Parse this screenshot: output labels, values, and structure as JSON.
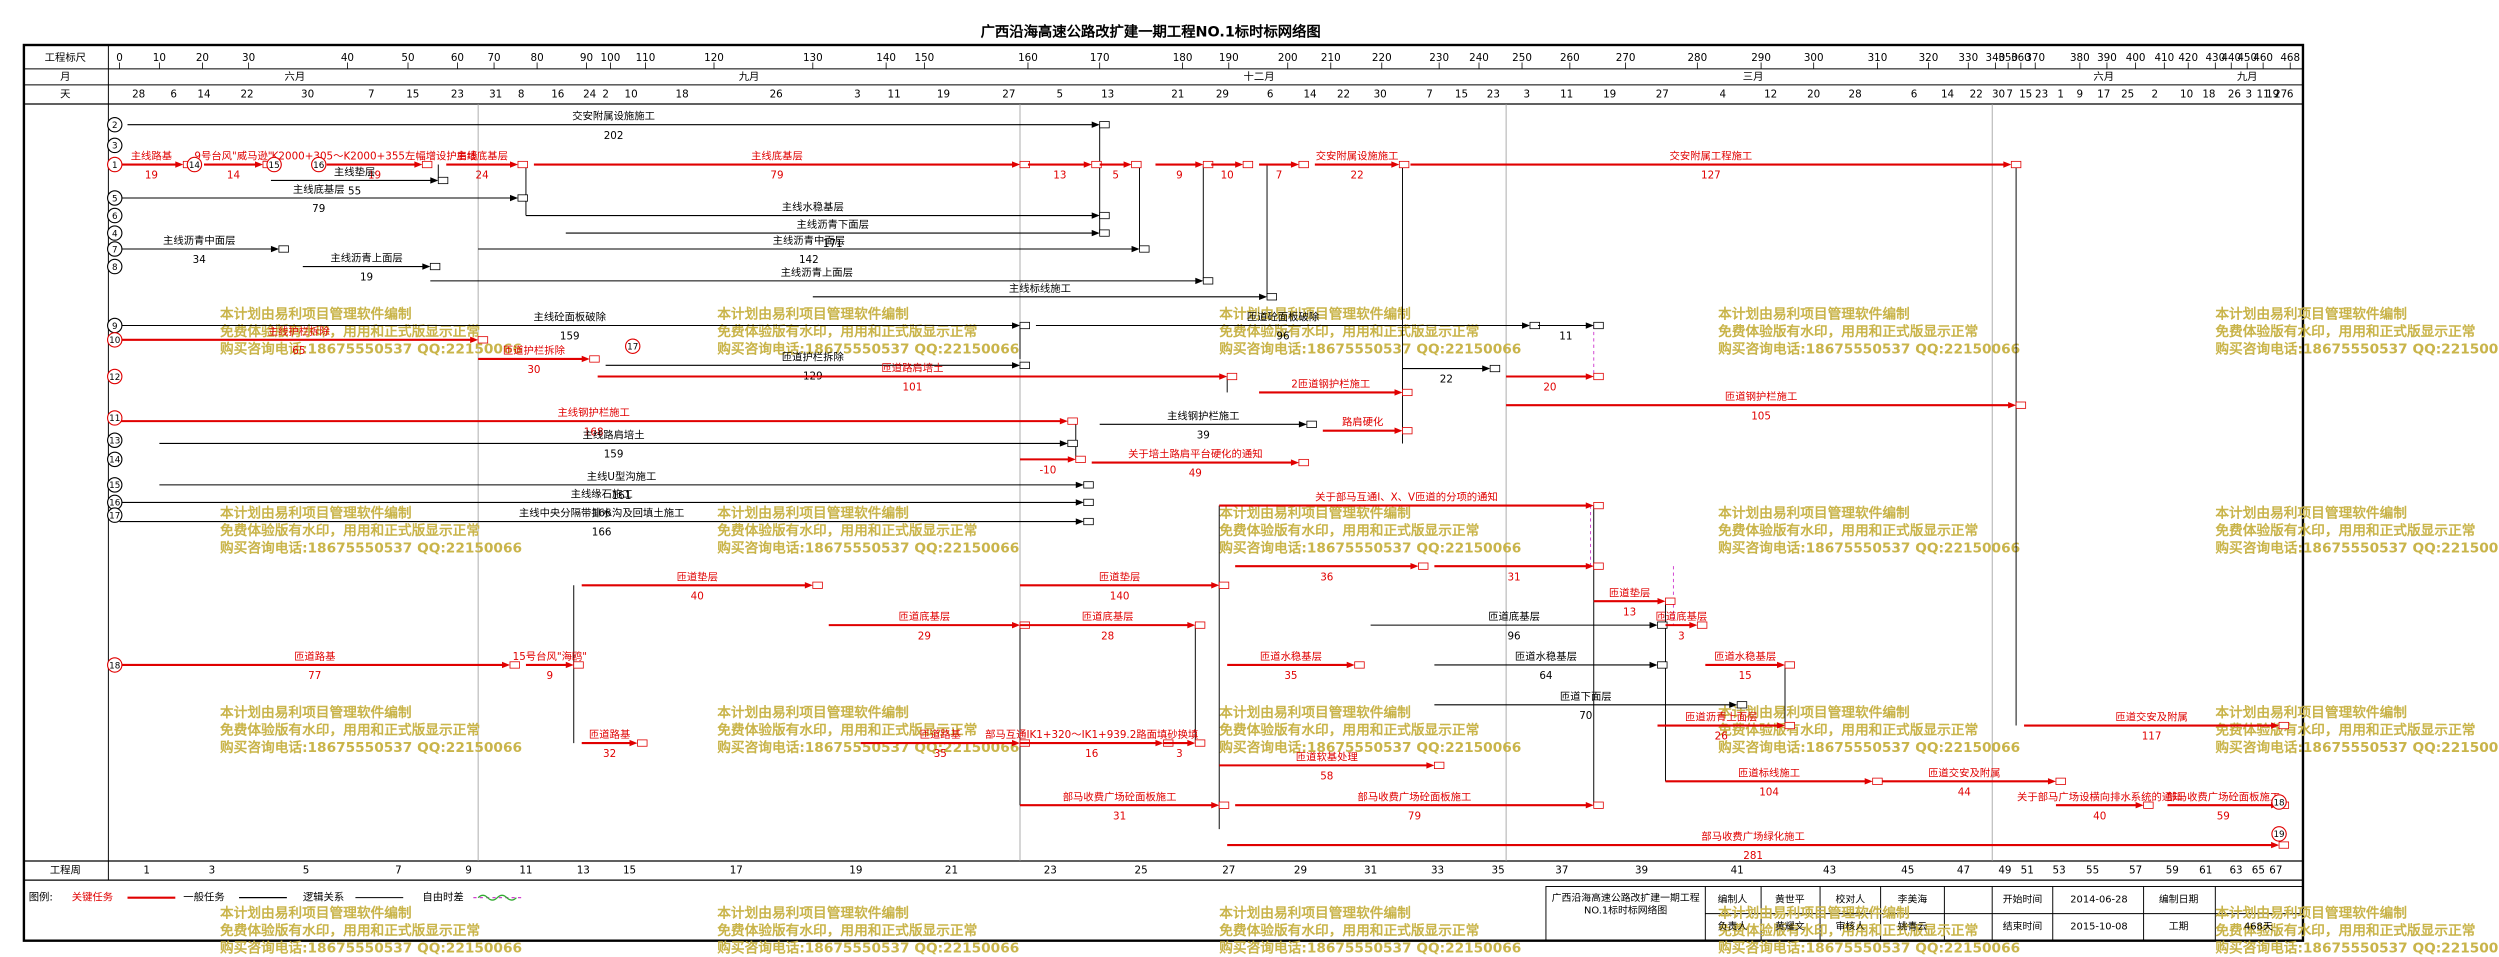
{
  "title": "广西沿海高速公路改扩建一期工程NO.1标时标网络图",
  "scale": {
    "label": "工程标尺",
    "ticks": [
      0,
      10,
      20,
      30,
      40,
      50,
      60,
      70,
      80,
      90,
      100,
      110,
      120,
      130,
      140,
      150,
      160,
      170,
      180,
      190,
      200,
      210,
      220,
      230,
      240,
      250,
      260,
      270,
      280,
      290,
      300,
      310,
      320,
      330,
      340,
      350,
      360,
      370,
      380,
      390,
      400,
      410,
      420,
      430,
      440,
      450,
      460,
      468
    ]
  },
  "months": {
    "label": "月",
    "items": [
      "六月",
      "九月",
      "十二月",
      "三月",
      "六月",
      "九月"
    ]
  },
  "days": {
    "label": "天",
    "items": [
      28,
      6,
      14,
      22,
      30,
      7,
      15,
      23,
      31,
      8,
      16,
      24,
      2,
      10,
      18,
      26,
      3,
      11,
      19,
      27,
      5,
      13,
      21,
      29,
      6,
      14,
      22,
      30,
      7,
      15,
      23,
      3,
      11,
      19,
      27,
      4,
      12,
      20,
      28,
      6,
      14,
      22,
      30,
      7,
      15,
      23,
      1,
      9,
      17,
      25,
      2,
      10,
      18,
      26,
      3,
      11,
      19,
      27,
      6
    ]
  },
  "weeks": {
    "label": "工程周",
    "items": [
      1,
      3,
      5,
      7,
      9,
      11,
      13,
      15,
      17,
      19,
      21,
      23,
      25,
      27,
      29,
      31,
      33,
      35,
      37,
      39,
      41,
      43,
      45,
      47,
      49,
      51,
      53,
      55,
      57,
      59,
      61,
      63,
      65,
      67
    ]
  },
  "nodes": [
    "2",
    "1",
    "3",
    "5",
    "6",
    "4",
    "7",
    "8",
    "9",
    "10",
    "12",
    "11",
    "13",
    "14",
    "15",
    "16",
    "17",
    "18",
    "14",
    "15",
    "16",
    "17",
    "18",
    "19"
  ],
  "tasks": [
    {
      "name": "交安附属设施施工",
      "duration": 202,
      "critical": false
    },
    {
      "name": "主线路基",
      "duration": 19,
      "critical": true
    },
    {
      "name": "9号台风\"威马逊\"",
      "duration": 14,
      "critical": true
    },
    {
      "name": "K2000+305～K2000+355左幅增设护肩墙",
      "duration": 19,
      "critical": true
    },
    {
      "name": "主线底基层",
      "duration": 24,
      "critical": true
    },
    {
      "name": "主线底基层",
      "duration": 79,
      "critical": true
    },
    {
      "duration": 13,
      "critical": true
    },
    {
      "duration": 5,
      "critical": true
    },
    {
      "duration": 9,
      "critical": true
    },
    {
      "duration": 10,
      "critical": true
    },
    {
      "duration": 7,
      "critical": true
    },
    {
      "name": "交安附属设施施工",
      "duration": 22,
      "critical": true
    },
    {
      "name": "交安附属工程施工",
      "duration": 127,
      "critical": true
    },
    {
      "name": "主线垫层",
      "duration": 55,
      "critical": false
    },
    {
      "name": "主线底基层",
      "duration": 79,
      "critical": false
    },
    {
      "name": "主线水稳基层",
      "critical": false
    },
    {
      "name": "主线沥青下面层",
      "duration": 171,
      "critical": false
    },
    {
      "name": "主线沥青中面层",
      "duration": 34,
      "critical": false
    },
    {
      "name": "主线沥青中面层",
      "duration": 142,
      "critical": false
    },
    {
      "name": "主线沥青上面层",
      "duration": 19,
      "critical": false
    },
    {
      "name": "主线沥青上面层",
      "critical": false
    },
    {
      "name": "主线标线施工",
      "critical": false
    },
    {
      "name": "主线砼面板破除",
      "duration": 159,
      "critical": false
    },
    {
      "name": "匝道砼面板破除",
      "duration": 96,
      "critical": false
    },
    {
      "duration": 11,
      "critical": false
    },
    {
      "name": "主线护栏拆除",
      "duration": 65,
      "critical": true
    },
    {
      "name": "匝道护栏拆除",
      "duration": 30,
      "critical": true
    },
    {
      "name": "匝道护栏拆除",
      "duration": 129,
      "critical": false
    },
    {
      "name": "匝道路肩培土",
      "duration": 101,
      "critical": true
    },
    {
      "duration": 22,
      "critical": false
    },
    {
      "duration": 20,
      "critical": true
    },
    {
      "name": "2匝道钢护栏施工",
      "critical": true
    },
    {
      "name": "匝道钢护栏施工",
      "duration": 105,
      "critical": true
    },
    {
      "name": "主线钢护栏施工",
      "duration": 168,
      "critical": true
    },
    {
      "name": "主线钢护栏施工",
      "duration": 39,
      "critical": false
    },
    {
      "name": "主线路肩培土",
      "duration": 159,
      "critical": false
    },
    {
      "name": "路肩硬化",
      "critical": true
    },
    {
      "name": "关于培土路肩平台硬化的通知",
      "duration": 49,
      "critical": true
    },
    {
      "duration": -10,
      "critical": true
    },
    {
      "name": "主线U型沟施工",
      "duration": 161,
      "critical": false
    },
    {
      "name": "主线缘石施工",
      "duration": 166,
      "critical": false
    },
    {
      "name": "主线中央分隔带排水沟及回填土施工",
      "duration": 166,
      "critical": false
    },
    {
      "name": "匝道路基",
      "duration": 77,
      "critical": true
    },
    {
      "name": "15号台风\"海鸥\"",
      "duration": 9,
      "critical": true
    },
    {
      "name": "匝道垫层",
      "duration": 40,
      "critical": true
    },
    {
      "name": "匝道路基",
      "duration": 32,
      "critical": true
    },
    {
      "name": "匝道路基",
      "duration": 35,
      "critical": true
    },
    {
      "name": "匝道底基层",
      "duration": 29,
      "critical": true
    },
    {
      "name": "匝道底基层",
      "duration": 28,
      "critical": true
    },
    {
      "name": "匝道垫层",
      "duration": 140,
      "critical": true
    },
    {
      "name": "匝道水稳基层",
      "duration": 35,
      "critical": true
    },
    {
      "name": "匝道底基层",
      "duration": 96,
      "critical": false
    },
    {
      "name": "匝道水稳基层",
      "duration": 64,
      "critical": false
    },
    {
      "name": "匝道下面层",
      "duration": 70,
      "critical": false
    },
    {
      "name": "匝道沥青上面层",
      "duration": 26,
      "critical": true
    },
    {
      "name": "匝道垫层",
      "duration": 13,
      "critical": true
    },
    {
      "duration": 36,
      "critical": true
    },
    {
      "duration": 31,
      "critical": true
    },
    {
      "name": "关于部马互通Ⅰ、Ⅹ、Ⅴ匝道的分项的通知",
      "critical": true
    },
    {
      "name": "部马收费广场砼面板施工",
      "duration": 31,
      "critical": true
    },
    {
      "name": "部马收费广场砼面板施工",
      "duration": 79,
      "critical": true
    },
    {
      "name": "部马收费广场绿化施工",
      "duration": 281,
      "critical": true
    },
    {
      "name": "匝道交安及附属",
      "duration": 117,
      "critical": true
    },
    {
      "name": "匝道交安及附属",
      "duration": 44,
      "critical": true
    },
    {
      "name": "匝道标线施工",
      "duration": 104,
      "critical": true
    },
    {
      "name": "关于部马广场设横向排水系统的通知",
      "duration": 40,
      "critical": true
    },
    {
      "name": "部马收费广场砼面板施工",
      "duration": 59,
      "critical": true
    },
    {
      "name": "匝道软基处理",
      "duration": 58,
      "critical": true
    },
    {
      "name": "部马互通IK1+320～IK1+939.2路面填砂换填",
      "duration": 16,
      "critical": true
    },
    {
      "name": "匝道底基层",
      "duration": 3,
      "critical": true
    },
    {
      "name": "匝道水稳基层",
      "duration": 15,
      "critical": true
    },
    {
      "duration": 3,
      "critical": true
    }
  ],
  "legend": {
    "title": "图例:",
    "items": [
      "关键任务",
      "一般任务",
      "逻辑关系",
      "自由时差"
    ]
  },
  "info": {
    "plan_name": "广西沿海高速公路改扩建一期工程NO.1标时标网络图",
    "rows": [
      [
        "编制人",
        "黄世平",
        "校对人",
        "李美海",
        "开始时间",
        "2014-06-28",
        "编制日期"
      ],
      [
        "负责人",
        "黄耀文",
        "审核人",
        "姚青云",
        "结束时间",
        "2015-10-08",
        "工期",
        "468天"
      ]
    ]
  },
  "watermark": [
    "本计划由易利项目管理软件编制",
    "免费体验版有水印，用用和正式版显示正常",
    "购买咨询电话:18675550537 QQ:22150066"
  ]
}
